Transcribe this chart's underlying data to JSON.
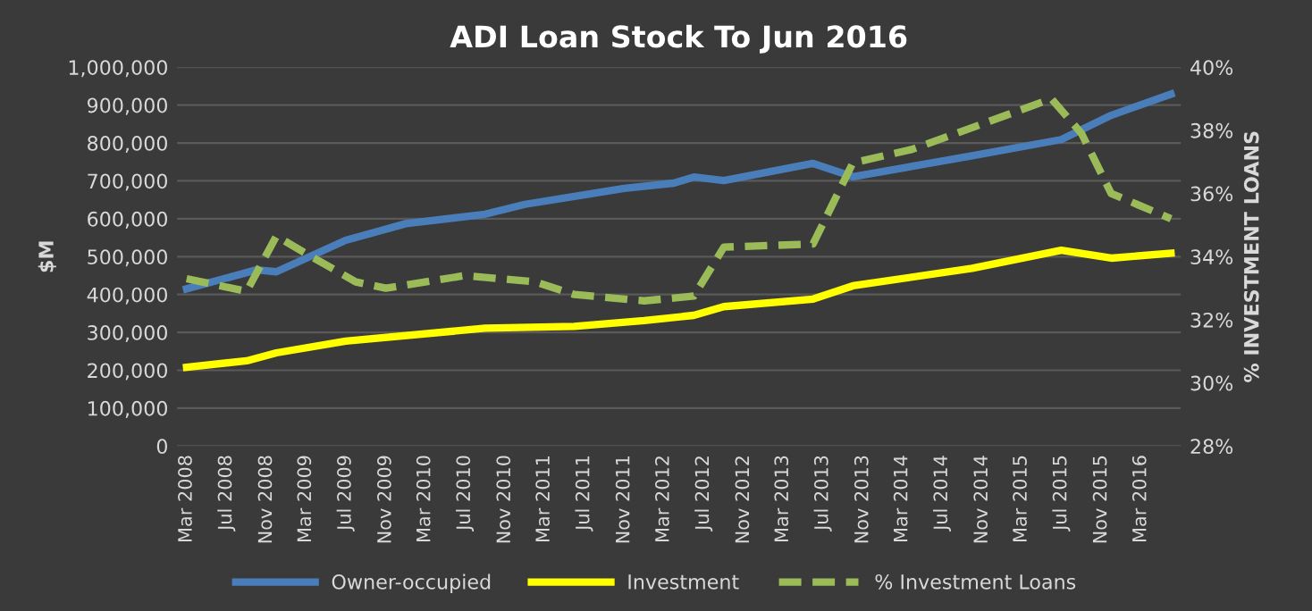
{
  "chart_data": {
    "type": "line",
    "title": "ADI Loan Stock To Jun 2016",
    "ylabel": "$M",
    "y2label": "% INVESTMENT LOANS",
    "series": [
      {
        "name": "Owner-occupied",
        "color": "#4a7ebb",
        "line_style": "solid",
        "x": [
          "2008-03",
          "2008-10",
          "2008-12",
          "2009-07",
          "2010-01",
          "2010-09",
          "2011-01",
          "2011-07",
          "2011-11",
          "2012-04",
          "2012-06",
          "2012-09",
          "2013-06",
          "2013-10",
          "2014-10",
          "2015-07",
          "2015-12",
          "2016-06"
        ],
        "values": [
          415000,
          465000,
          460000,
          543000,
          587000,
          612000,
          638000,
          663000,
          680000,
          694000,
          710000,
          701000,
          746000,
          711000,
          766000,
          809000,
          873000,
          929000
        ]
      },
      {
        "name": "Investment",
        "color": "#ffff00",
        "line_style": "solid",
        "x": [
          "2008-03",
          "2008-09",
          "2008-12",
          "2009-07",
          "2010-09",
          "2011-06",
          "2012-01",
          "2012-06",
          "2012-09",
          "2013-06",
          "2013-10",
          "2014-10",
          "2015-07",
          "2015-12",
          "2016-06"
        ],
        "values": [
          208000,
          225000,
          246000,
          277000,
          311000,
          316000,
          331000,
          345000,
          368000,
          388000,
          423000,
          469000,
          517000,
          496000,
          509000
        ]
      },
      {
        "name": "% Investment Loans",
        "color": "#9bbb59",
        "line_style": "dashed",
        "axis": "y2",
        "x": [
          "2008-03",
          "2008-09",
          "2008-12",
          "2009-03",
          "2009-08",
          "2009-11",
          "2010-07",
          "2011-02",
          "2011-06",
          "2012-01",
          "2012-06",
          "2012-09",
          "2013-06",
          "2013-10",
          "2014-04",
          "2015-06",
          "2015-09",
          "2015-12",
          "2016-06"
        ],
        "values": [
          33.3,
          32.9,
          34.65,
          34.1,
          33.2,
          33.0,
          33.4,
          33.2,
          32.8,
          32.6,
          32.75,
          34.3,
          34.4,
          36.97,
          37.4,
          39.0,
          37.9,
          36.0,
          35.2
        ]
      }
    ],
    "xlim": [
      "2008-02",
      "2016-07"
    ],
    "xticks": [
      {
        "value": "2008-03",
        "label": "Mar 2008"
      },
      {
        "value": "2008-07",
        "label": "Jul 2008"
      },
      {
        "value": "2008-11",
        "label": "Nov 2008"
      },
      {
        "value": "2009-03",
        "label": "Mar 2009"
      },
      {
        "value": "2009-07",
        "label": "Jul 2009"
      },
      {
        "value": "2009-11",
        "label": "Nov 2009"
      },
      {
        "value": "2010-03",
        "label": "Mar 2010"
      },
      {
        "value": "2010-07",
        "label": "Jul 2010"
      },
      {
        "value": "2010-11",
        "label": "Nov 2010"
      },
      {
        "value": "2011-03",
        "label": "Mar 2011"
      },
      {
        "value": "2011-07",
        "label": "Jul 2011"
      },
      {
        "value": "2011-11",
        "label": "Nov 2011"
      },
      {
        "value": "2012-03",
        "label": "Mar 2012"
      },
      {
        "value": "2012-07",
        "label": "Jul 2012"
      },
      {
        "value": "2012-11",
        "label": "Nov 2012"
      },
      {
        "value": "2013-03",
        "label": "Mar 2013"
      },
      {
        "value": "2013-07",
        "label": "Jul 2013"
      },
      {
        "value": "2013-11",
        "label": "Nov 2013"
      },
      {
        "value": "2014-03",
        "label": "Mar 2014"
      },
      {
        "value": "2014-07",
        "label": "Jul 2014"
      },
      {
        "value": "2014-11",
        "label": "Nov 2014"
      },
      {
        "value": "2015-03",
        "label": "Mar 2015"
      },
      {
        "value": "2015-07",
        "label": "Jul 2015"
      },
      {
        "value": "2015-11",
        "label": "Nov 2015"
      },
      {
        "value": "2016-03",
        "label": "Mar 2016"
      }
    ],
    "ylim": [
      0,
      1000000
    ],
    "yticks": [
      0,
      {
        "value": 100000,
        "label": "100,000"
      },
      {
        "value": 200000,
        "label": "200,000"
      },
      {
        "value": 300000,
        "label": "300,000"
      },
      {
        "value": 400000,
        "label": "400,000"
      },
      {
        "value": 500000,
        "label": "500,000"
      },
      {
        "value": 600000,
        "label": "600,000"
      },
      {
        "value": 700000,
        "label": "700,000"
      },
      {
        "value": 800000,
        "label": "800,000"
      },
      {
        "value": 900000,
        "label": "900,000"
      },
      {
        "value": 1000000,
        "label": "1,000,000"
      }
    ],
    "y2lim": [
      28,
      40
    ],
    "y2ticks": [
      {
        "value": 28,
        "label": "28%"
      },
      {
        "value": 30,
        "label": "30%"
      },
      {
        "value": 32,
        "label": "32%"
      },
      {
        "value": 34,
        "label": "34%"
      },
      {
        "value": 36,
        "label": "36%"
      },
      {
        "value": 38,
        "label": "38%"
      },
      {
        "value": 40,
        "label": "40%"
      }
    ],
    "grid": "y",
    "legend": "bottom"
  }
}
